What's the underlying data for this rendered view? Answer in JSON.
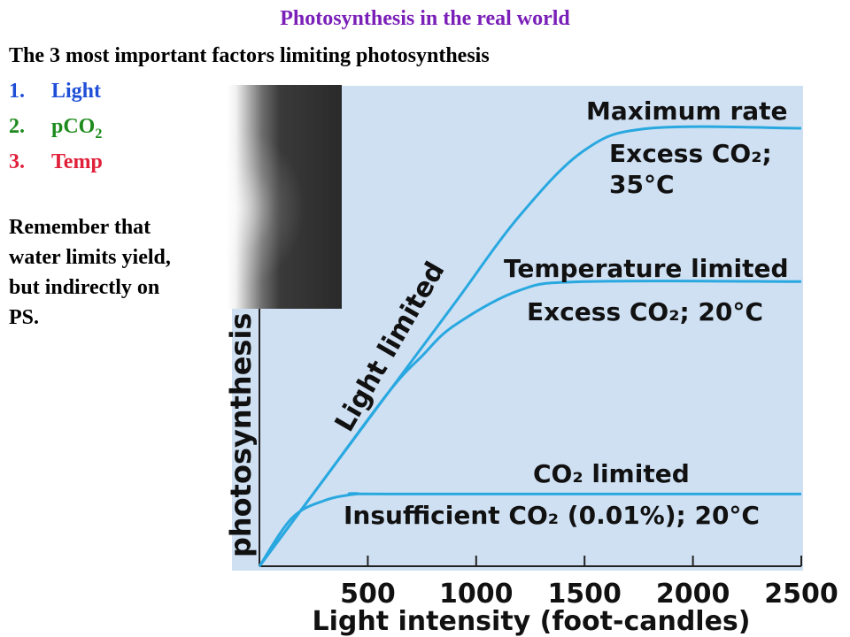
{
  "slide": {
    "title": "Photosynthesis in the real world",
    "subtitle": "The 3 most important factors limiting photosynthesis",
    "factors": [
      {
        "num": "1.",
        "label": "Light",
        "sub": "",
        "color": "#1f4fd8"
      },
      {
        "num": "2.",
        "label": "pCO",
        "sub": "2",
        "color": "#1e8a1e"
      },
      {
        "num": "3.",
        "label": "Temp",
        "sub": "",
        "color": "#e0203a"
      }
    ],
    "note_lines": [
      "Remember that",
      "water limits yield,",
      "but indirectly on",
      "PS."
    ]
  },
  "colors": {
    "title": "#7a1fb8",
    "plot_bg": "#cfe0f3",
    "curve": "#29a8e0"
  },
  "chart_data": {
    "type": "line",
    "xlabel": "Light intensity (foot-candles)",
    "ylabel": "photosynthesis",
    "xlim": [
      0,
      2500
    ],
    "ylim": [
      0,
      100
    ],
    "x_ticks": [
      500,
      1000,
      1500,
      2000,
      2500
    ],
    "grid": false,
    "legend": "none",
    "series": [
      {
        "x": [
          0,
          300,
          600,
          900,
          1200,
          1500,
          1800,
          2500
        ],
        "y": [
          0,
          20,
          40,
          60,
          80,
          95,
          100,
          100
        ]
      },
      {
        "x": [
          0,
          300,
          600,
          750,
          900,
          1200,
          1500,
          2500
        ],
        "y": [
          0,
          20,
          40,
          48,
          55,
          63,
          65,
          65
        ]
      },
      {
        "x": [
          0,
          150,
          300,
          450,
          600,
          2500
        ],
        "y": [
          0,
          11,
          15,
          16.5,
          16.5,
          16.5
        ]
      }
    ],
    "annotations": {
      "light_limited": "Light limited",
      "max_rate": "Maximum rate",
      "max_rate_detail": [
        "Excess CO₂;",
        "35°C"
      ],
      "temp_limited": "Temperature limited",
      "temp_limited_detail": "Excess CO₂; 20°C",
      "co2_limited": "CO₂ limited",
      "co2_limited_detail": "Insufficient CO₂ (0.01%); 20°C"
    }
  }
}
